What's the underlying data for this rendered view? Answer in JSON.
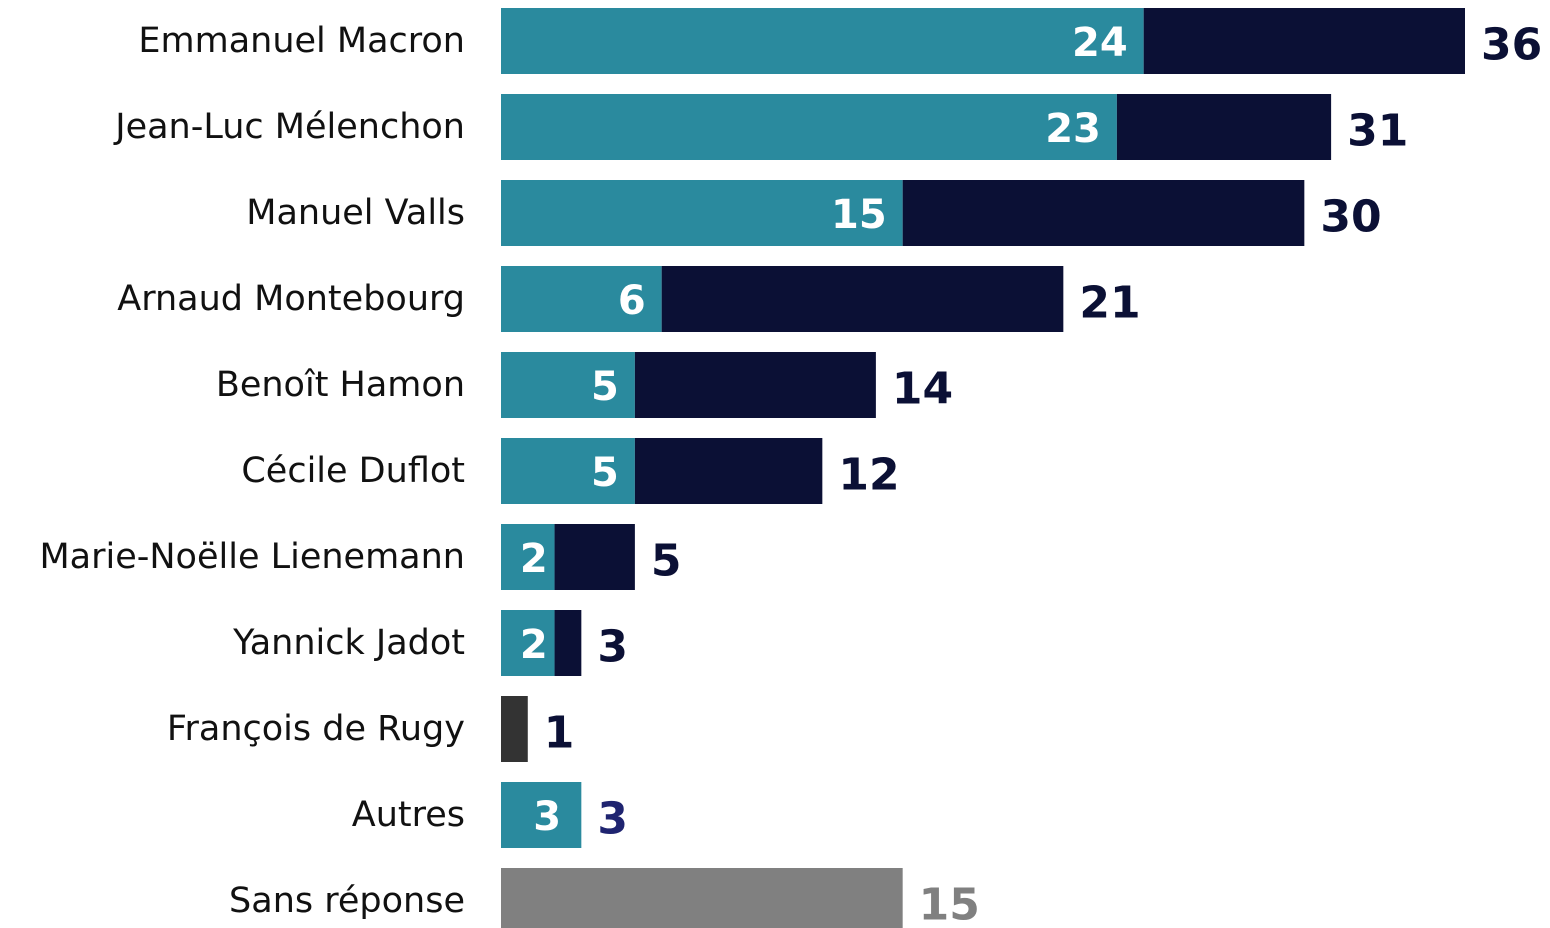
{
  "chart_data": {
    "type": "stacked-barh",
    "categories": [
      "Emmanuel Macron",
      "Jean-Luc Mélenchon",
      "Manuel Valls",
      "Arnaud Montebourg",
      "Benoît Hamon",
      "Cécile Duflot",
      "Marie-Noëlle Lienemann",
      "Yannick Jadot",
      "François de Rugy",
      "Autres",
      "Sans réponse"
    ],
    "series": [
      {
        "color": "#2a8a9e",
        "values": [
          24,
          23,
          15,
          6,
          5,
          5,
          2,
          2,
          null,
          3,
          null
        ]
      },
      {
        "color": "#0b1035",
        "values": [
          12,
          8,
          15,
          15,
          9,
          7,
          3,
          1,
          null,
          null,
          null
        ]
      },
      {
        "color": "#333333",
        "values": [
          null,
          null,
          null,
          null,
          null,
          null,
          null,
          null,
          1,
          null,
          null
        ]
      },
      {
        "color": "#808080",
        "values": [
          null,
          null,
          null,
          null,
          null,
          null,
          null,
          null,
          null,
          null,
          15
        ]
      }
    ],
    "labeled_series": 0,
    "totals": [
      36,
      31,
      30,
      21,
      14,
      12,
      5,
      3,
      1,
      3,
      15
    ],
    "total_colors": [
      "#0b1035",
      "#0b1035",
      "#0b1035",
      "#0b1035",
      "#0b1035",
      "#0b1035",
      "#0b1035",
      "#0b1035",
      "#0b1035",
      "#1f2470",
      "#808080"
    ],
    "xlim": [
      0,
      36
    ]
  }
}
